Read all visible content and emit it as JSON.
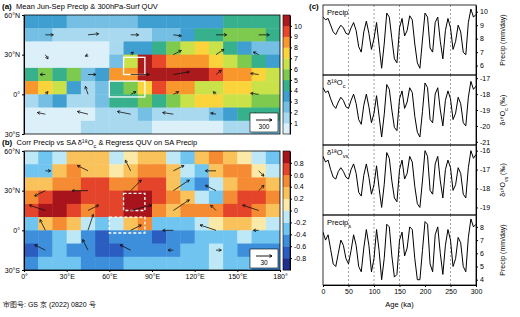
{
  "chart_data": [
    {
      "type": "heatmap",
      "label": "(a)",
      "title": "Mean Jun-Sep Precip & 300hPa-Surf QUV",
      "xlim": [
        0,
        180
      ],
      "ylim": [
        -30,
        60
      ],
      "tick_labels": "y",
      "yticks": [
        {
          "value": -30,
          "label": "30°S"
        },
        {
          "value": 0,
          "label": "0°"
        },
        {
          "value": 30,
          "label": "30°N"
        },
        {
          "value": 60,
          "label": "60°N"
        }
      ],
      "x": [
        5,
        15,
        25,
        35,
        45,
        55,
        65,
        75,
        85,
        95,
        105,
        115,
        125,
        135,
        145,
        155,
        165,
        175
      ],
      "y": [
        55,
        45,
        35,
        25,
        15,
        5,
        -5,
        -15,
        -25
      ],
      "cells": [
        [
          3,
          3,
          3,
          2,
          2,
          2,
          2,
          2,
          3,
          3,
          3,
          3,
          3,
          3,
          4,
          4,
          4,
          4
        ],
        [
          2,
          2,
          1,
          1,
          1,
          1,
          1,
          1,
          1,
          2,
          2,
          3,
          4,
          4,
          5,
          5,
          5,
          4
        ],
        [
          0.3,
          0.3,
          0.2,
          0.3,
          0.3,
          0.5,
          1,
          3,
          3,
          4,
          5,
          6,
          7,
          6,
          4,
          3,
          2,
          2
        ],
        [
          0.5,
          0.3,
          0.2,
          0.2,
          0.3,
          0.5,
          2,
          6,
          10,
          9,
          8,
          8,
          8,
          7,
          6,
          5,
          4,
          3
        ],
        [
          4,
          5,
          4,
          5,
          2,
          3,
          8,
          8,
          10.8,
          10.8,
          10,
          10,
          10,
          9,
          8,
          8,
          7,
          6
        ],
        [
          8,
          7,
          6,
          3,
          1,
          2,
          4,
          5,
          7,
          9,
          8,
          8,
          6,
          6,
          7,
          7,
          6,
          6
        ],
        [
          1,
          2,
          3,
          1,
          1,
          2,
          4,
          4,
          5,
          4,
          5,
          6,
          7,
          7,
          6,
          6,
          5,
          5
        ],
        [
          0.5,
          0.5,
          0.5,
          0.5,
          0.5,
          1,
          1,
          1,
          2,
          1,
          1,
          1,
          1,
          2,
          3,
          4,
          4,
          4
        ],
        [
          0.3,
          0.3,
          0.3,
          0.5,
          1,
          1,
          1,
          1,
          1,
          0.5,
          0.5,
          0.5,
          0.5,
          0.5,
          1,
          1,
          2,
          2
        ]
      ],
      "colorbar": {
        "range": [
          0,
          11
        ],
        "ticks": [
          1,
          2,
          3,
          4,
          5,
          6,
          7,
          8,
          9,
          10
        ],
        "colors": [
          "#dcf0f9",
          "#a9d9ef",
          "#74bfe3",
          "#3f9fd0",
          "#37b08c",
          "#7dca4f",
          "#c9e24a",
          "#fbd43c",
          "#f8982c",
          "#e8472a",
          "#ab1a1c"
        ]
      },
      "boxes": [
        {
          "lon": [
            70,
            85
          ],
          "lat": [
            15,
            28
          ],
          "line_style": "solid"
        },
        {
          "lon": [
            60,
            85
          ],
          "lat": [
            -2,
            10
          ],
          "line_style": "solid"
        }
      ],
      "vectors": {
        "lon": [
          15,
          45,
          75,
          105,
          135,
          165
        ],
        "lat": [
          45,
          30,
          15,
          0,
          -15
        ],
        "u": [
          [
            150,
            200,
            150,
            150,
            200,
            200
          ],
          [
            50,
            -50,
            50,
            150,
            150,
            -100
          ],
          [
            -100,
            150,
            350,
            300,
            100,
            -150
          ],
          [
            50,
            -50,
            100,
            100,
            -50,
            -150
          ],
          [
            -150,
            -200,
            -250,
            -200,
            -100,
            -100
          ]
        ],
        "v": [
          [
            0,
            20,
            0,
            -20,
            0,
            0
          ],
          [
            -80,
            -30,
            50,
            80,
            100,
            50
          ],
          [
            0,
            0,
            0,
            50,
            80,
            20
          ],
          [
            50,
            150,
            50,
            50,
            50,
            20
          ],
          [
            30,
            50,
            50,
            30,
            20,
            0
          ]
        ]
      },
      "ref_vector": 300
    },
    {
      "type": "heatmap",
      "label": "(b)",
      "title": "Corr Precip vs SA δ¹⁸O",
      "title_sub": "c",
      "title_tail": " & Regress QUV on SA Precip",
      "xlim": [
        0,
        180
      ],
      "ylim": [
        -30,
        60
      ],
      "xticks": [
        {
          "value": 0,
          "label": "0°"
        },
        {
          "value": 30,
          "label": "30°E"
        },
        {
          "value": 60,
          "label": "60°E"
        },
        {
          "value": 90,
          "label": "90°E"
        },
        {
          "value": 120,
          "label": "120°E"
        },
        {
          "value": 150,
          "label": "150°E"
        },
        {
          "value": 180,
          "label": "180°"
        }
      ],
      "yticks": [
        {
          "value": -30,
          "label": "30°S"
        },
        {
          "value": 0,
          "label": "0°"
        },
        {
          "value": 30,
          "label": "30°N"
        },
        {
          "value": 60,
          "label": "60°N"
        }
      ],
      "x": [
        5,
        15,
        25,
        35,
        45,
        55,
        65,
        75,
        85,
        95,
        105,
        115,
        125,
        135,
        145,
        155,
        165,
        175
      ],
      "y": [
        55,
        45,
        35,
        25,
        15,
        5,
        -5,
        -15,
        -25
      ],
      "cells": [
        [
          -0.2,
          -0.3,
          -0.2,
          0.2,
          0.3,
          0.2,
          -0.1,
          0.1,
          0.3,
          0.2,
          -0.2,
          -0.3,
          0.2,
          0.4,
          0.3,
          0.1,
          -0.2,
          -0.3
        ],
        [
          -0.4,
          -0.3,
          0.2,
          0.4,
          0.3,
          0.2,
          0.1,
          0.3,
          0.4,
          0.5,
          0.3,
          -0.2,
          -0.4,
          0.3,
          0.5,
          0.4,
          0.1,
          -0.2
        ],
        [
          0.2,
          0.3,
          0.5,
          0.4,
          0.6,
          0.6,
          0.5,
          0.5,
          0.7,
          0.6,
          0.3,
          -0.3,
          -0.5,
          -0.2,
          0.3,
          0.5,
          0.4,
          0.2
        ],
        [
          0.5,
          0.7,
          0.8,
          0.8,
          0.7,
          0.7,
          0.7,
          0.8,
          0.8,
          0.6,
          0.4,
          0.2,
          -0.2,
          -0.3,
          0.5,
          0.6,
          0.6,
          0.4
        ],
        [
          0.6,
          0.8,
          0.8,
          0.7,
          0.5,
          0.6,
          0.7,
          0.8,
          0.8,
          0.5,
          0.3,
          0.4,
          0.5,
          0.5,
          0.6,
          0.6,
          0.5,
          0.3
        ],
        [
          -0.3,
          0.2,
          0.4,
          0.3,
          -0.2,
          -0.4,
          -0.2,
          0.3,
          0.4,
          -0.3,
          -0.4,
          -0.3,
          -0.2,
          0.1,
          0.2,
          0.3,
          0.1,
          -0.2
        ],
        [
          -0.6,
          -0.5,
          -0.3,
          -0.2,
          -0.6,
          -0.7,
          -0.6,
          -0.5,
          -0.6,
          -0.7,
          -0.6,
          -0.5,
          -0.4,
          -0.3,
          -0.4,
          -0.2,
          -0.3,
          -0.4
        ],
        [
          -0.7,
          -0.6,
          -0.4,
          -0.5,
          -0.6,
          -0.7,
          -0.7,
          -0.6,
          -0.6,
          -0.5,
          -0.5,
          -0.4,
          -0.3,
          -0.2,
          -0.4,
          -0.5,
          -0.6,
          -0.6
        ],
        [
          -0.5,
          -0.4,
          -0.3,
          -0.4,
          -0.5,
          -0.6,
          -0.5,
          -0.4,
          -0.3,
          -0.3,
          -0.4,
          -0.4,
          -0.3,
          -0.2,
          -0.3,
          -0.4,
          -0.5,
          -0.5
        ]
      ],
      "colorbar": {
        "range": [
          -1,
          1
        ],
        "ticks": [
          -0.8,
          -0.6,
          -0.4,
          -0.2,
          0,
          0.2,
          0.4,
          0.6,
          0.8
        ],
        "colors": [
          "#1f2f8c",
          "#2b5cbf",
          "#3d8fdc",
          "#6fc4f0",
          "#bfe8f6",
          "#fbe9a8",
          "#f9c25a",
          "#f58b33",
          "#e3442a",
          "#a8141c"
        ]
      },
      "boxes": [
        {
          "lon": [
            70,
            85
          ],
          "lat": [
            15,
            28
          ],
          "line_style": "dashed"
        },
        {
          "lon": [
            60,
            85
          ],
          "lat": [
            -2,
            10
          ],
          "line_style": "dashed"
        }
      ],
      "vectors": {
        "lon": [
          15,
          45,
          75,
          105,
          135,
          165
        ],
        "lat": [
          45,
          30,
          15,
          0,
          -15
        ],
        "u": [
          [
            10,
            -20,
            -10,
            20,
            -20,
            10
          ],
          [
            -20,
            -30,
            20,
            30,
            -20,
            10
          ],
          [
            -30,
            20,
            40,
            30,
            -10,
            -30
          ],
          [
            -10,
            10,
            20,
            -20,
            -30,
            -10
          ],
          [
            -20,
            -10,
            -20,
            -10,
            10,
            -10
          ]
        ],
        "v": [
          [
            0,
            10,
            20,
            10,
            0,
            -10
          ],
          [
            -10,
            0,
            20,
            20,
            10,
            10
          ],
          [
            10,
            10,
            10,
            20,
            10,
            10
          ],
          [
            20,
            30,
            10,
            0,
            10,
            0
          ],
          [
            10,
            20,
            10,
            0,
            0,
            -10
          ]
        ]
      },
      "ref_vector": 30
    },
    {
      "type": "line",
      "label": "(c)",
      "xlabel": "Age (ka)",
      "xlim": [
        0,
        300
      ],
      "xticks": [
        0,
        50,
        100,
        150,
        200,
        250,
        300
      ],
      "vlines": [
        50,
        100,
        150,
        250
      ],
      "x": [
        0,
        5,
        10,
        15,
        20,
        25,
        30,
        35,
        40,
        45,
        50,
        55,
        60,
        65,
        70,
        75,
        80,
        85,
        90,
        95,
        100,
        105,
        110,
        115,
        120,
        125,
        130,
        135,
        140,
        145,
        150,
        155,
        160,
        165,
        170,
        175,
        180,
        185,
        190,
        195,
        200,
        205,
        210,
        215,
        220,
        225,
        230,
        235,
        240,
        245,
        250,
        255,
        260,
        265,
        270,
        275,
        280,
        285,
        290,
        295,
        300
      ],
      "series": [
        {
          "name": "Precip",
          "color": "#000000",
          "ylabel": "Precip (mm/day)",
          "ylim": [
            5.3,
            10.5
          ],
          "yticks": [
            6,
            7,
            8,
            9,
            10
          ],
          "values": [
            9.6,
            9.4,
            9.5,
            9.0,
            8.5,
            8.3,
            8.7,
            9.0,
            8.8,
            8.4,
            8.3,
            8.8,
            9.2,
            8.6,
            7.4,
            7.0,
            8.5,
            9.3,
            8.4,
            7.2,
            8.0,
            9.2,
            7.5,
            5.8,
            7.6,
            9.9,
            9.6,
            8.0,
            6.5,
            6.2,
            8.8,
            9.5,
            8.2,
            8.6,
            9.7,
            9.4,
            7.6,
            6.2,
            5.8,
            7.9,
            9.9,
            9.6,
            7.3,
            7.0,
            9.2,
            9.6,
            7.8,
            6.5,
            8.6,
            9.5,
            8.8,
            7.2,
            7.8,
            9.0,
            8.5,
            7.0,
            6.8,
            9.2,
            10.2,
            9.6,
            9.8
          ]
        },
        {
          "name": "δ¹⁸O",
          "name_sub": "c",
          "color": "#000000",
          "ylabel": "δ¹⁸O",
          "ylabel_sub": "c",
          "ylabel_tail": " (‰)",
          "ylim": [
            -21.2,
            -16.8
          ],
          "yticks": [
            -21,
            -20,
            -19,
            -18,
            -17
          ],
          "values": [
            -17.6,
            -17.9,
            -17.8,
            -18.3,
            -18.7,
            -18.9,
            -18.5,
            -18.2,
            -18.4,
            -18.8,
            -18.9,
            -18.4,
            -18.0,
            -18.6,
            -19.6,
            -19.9,
            -18.7,
            -18.0,
            -18.8,
            -19.8,
            -19.2,
            -18.1,
            -19.4,
            -20.7,
            -19.3,
            -17.4,
            -17.7,
            -19.0,
            -20.1,
            -20.3,
            -18.3,
            -17.8,
            -18.9,
            -18.5,
            -17.6,
            -17.9,
            -19.4,
            -20.4,
            -20.7,
            -19.1,
            -17.3,
            -17.6,
            -19.6,
            -19.8,
            -18.0,
            -17.6,
            -19.0,
            -20.0,
            -18.4,
            -17.8,
            -18.3,
            -19.6,
            -19.2,
            -18.2,
            -18.6,
            -19.8,
            -20.0,
            -18.2,
            -17.2,
            -17.7,
            -17.5
          ]
        },
        {
          "name": "δ¹⁸O",
          "name_sub": "vs",
          "color": "#000000",
          "ylabel": "δ¹⁸O",
          "ylabel_sub": "vs",
          "ylabel_tail": " (‰)",
          "ylim": [
            -19.4,
            -15.7
          ],
          "yticks": [
            -19,
            -18,
            -17,
            -16
          ],
          "values": [
            -16.3,
            -16.6,
            -16.5,
            -17.0,
            -17.4,
            -17.5,
            -17.1,
            -16.9,
            -17.1,
            -17.4,
            -17.5,
            -17.0,
            -16.7,
            -17.2,
            -18.2,
            -18.4,
            -17.3,
            -16.7,
            -17.4,
            -18.3,
            -17.8,
            -16.8,
            -18.0,
            -19.0,
            -17.8,
            -16.1,
            -16.4,
            -17.6,
            -18.5,
            -18.7,
            -17.0,
            -16.5,
            -17.5,
            -17.2,
            -16.3,
            -16.6,
            -17.9,
            -18.8,
            -19.0,
            -17.6,
            -16.0,
            -16.3,
            -18.1,
            -18.3,
            -16.7,
            -16.3,
            -17.6,
            -18.5,
            -17.0,
            -16.5,
            -16.9,
            -18.1,
            -17.8,
            -16.9,
            -17.2,
            -18.3,
            -18.5,
            -16.9,
            -16.0,
            -16.4,
            -16.2
          ]
        },
        {
          "name": "Precip",
          "name_sub": "s",
          "color": "#000000",
          "ylabel": "Precip (mm/day)",
          "ylim": [
            3.6,
            8.9
          ],
          "yticks": [
            4,
            5,
            6,
            7,
            8
          ],
          "values": [
            7.6,
            7.0,
            7.4,
            6.3,
            5.2,
            5.0,
            6.0,
            7.0,
            6.6,
            5.6,
            5.2,
            6.2,
            7.4,
            6.6,
            5.0,
            4.6,
            6.4,
            7.8,
            6.6,
            4.6,
            5.6,
            7.8,
            6.2,
            4.0,
            5.6,
            8.2,
            8.0,
            5.8,
            4.2,
            4.4,
            7.0,
            7.6,
            5.8,
            6.4,
            8.0,
            7.8,
            5.6,
            4.0,
            4.0,
            6.2,
            8.4,
            8.2,
            5.2,
            4.6,
            7.4,
            8.0,
            6.0,
            4.4,
            6.6,
            7.8,
            7.0,
            5.0,
            5.6,
            7.2,
            6.8,
            5.0,
            4.6,
            7.2,
            8.6,
            8.0,
            8.2
          ]
        }
      ]
    }
  ],
  "footer": "审图号: GS 京 (2022) 0820 号"
}
